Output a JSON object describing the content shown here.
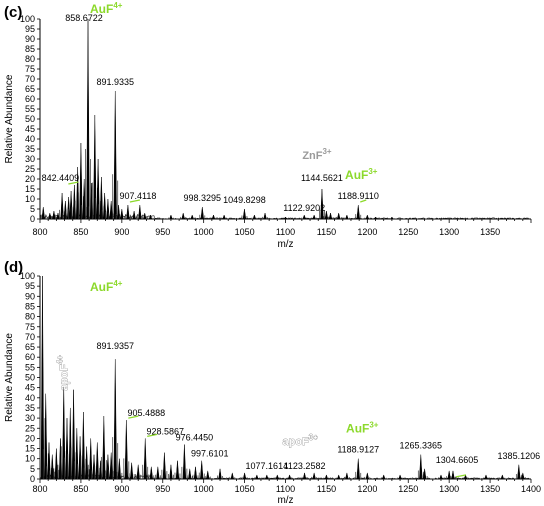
{
  "chart_data": [
    {
      "type": "line",
      "panel_label": "(c)",
      "xlabel": "m/z",
      "ylabel": "Relative Abundance",
      "xlim": [
        800,
        1400
      ],
      "ylim": [
        0,
        100
      ],
      "x_ticks": [
        800,
        850,
        900,
        950,
        1000,
        1050,
        1100,
        1150,
        1200,
        1250,
        1300,
        1350
      ],
      "y_ticks": [
        0,
        5,
        10,
        15,
        20,
        25,
        30,
        35,
        40,
        45,
        50,
        55,
        60,
        65,
        70,
        75,
        80,
        85,
        90,
        95,
        100
      ],
      "peaks": [
        {
          "x": 804,
          "y": 6
        },
        {
          "x": 812,
          "y": 3
        },
        {
          "x": 817,
          "y": 4
        },
        {
          "x": 822,
          "y": 3
        },
        {
          "x": 827,
          "y": 13
        },
        {
          "x": 831,
          "y": 9
        },
        {
          "x": 835,
          "y": 11
        },
        {
          "x": 838,
          "y": 14
        },
        {
          "x": 842,
          "y": 17
        },
        {
          "x": 846,
          "y": 26
        },
        {
          "x": 850,
          "y": 38
        },
        {
          "x": 854,
          "y": 20
        },
        {
          "x": 858.6722,
          "y": 100
        },
        {
          "x": 863,
          "y": 18
        },
        {
          "x": 867,
          "y": 52
        },
        {
          "x": 871,
          "y": 30
        },
        {
          "x": 875,
          "y": 21
        },
        {
          "x": 879,
          "y": 13
        },
        {
          "x": 883,
          "y": 10
        },
        {
          "x": 887,
          "y": 9
        },
        {
          "x": 891.9335,
          "y": 64
        },
        {
          "x": 896,
          "y": 7
        },
        {
          "x": 900,
          "y": 5
        },
        {
          "x": 907.4118,
          "y": 7
        },
        {
          "x": 915,
          "y": 4
        },
        {
          "x": 922,
          "y": 7
        },
        {
          "x": 928,
          "y": 3
        },
        {
          "x": 935,
          "y": 2
        },
        {
          "x": 960,
          "y": 2
        },
        {
          "x": 975,
          "y": 3
        },
        {
          "x": 986,
          "y": 2
        },
        {
          "x": 998.3295,
          "y": 6
        },
        {
          "x": 1012,
          "y": 2
        },
        {
          "x": 1025,
          "y": 2
        },
        {
          "x": 1049.8298,
          "y": 5
        },
        {
          "x": 1062,
          "y": 2
        },
        {
          "x": 1075,
          "y": 3
        },
        {
          "x": 1100,
          "y": 1
        },
        {
          "x": 1122.9202,
          "y": 2
        },
        {
          "x": 1135,
          "y": 2
        },
        {
          "x": 1144.5621,
          "y": 15
        },
        {
          "x": 1150,
          "y": 4
        },
        {
          "x": 1155,
          "y": 3
        },
        {
          "x": 1165,
          "y": 3
        },
        {
          "x": 1175,
          "y": 2
        },
        {
          "x": 1188.911,
          "y": 7
        },
        {
          "x": 1200,
          "y": 2
        },
        {
          "x": 1210,
          "y": 1
        },
        {
          "x": 1230,
          "y": 1
        }
      ],
      "annotations": [
        {
          "text": "858.6722",
          "x": 858.6722,
          "y": 100
        },
        {
          "text": "891.9335",
          "x": 891.9335,
          "y": 64
        },
        {
          "text": "842.4409",
          "x": 842,
          "y": 17
        },
        {
          "text": "907.4118",
          "x": 907.4118,
          "y": 7
        },
        {
          "text": "998.3295",
          "x": 998.3295,
          "y": 6
        },
        {
          "text": "1049.8298",
          "x": 1049.8298,
          "y": 5
        },
        {
          "text": "1122.9202",
          "x": 1122.9202,
          "y": 2
        },
        {
          "text": "1144.5621",
          "x": 1144.5621,
          "y": 15
        },
        {
          "text": "1188.9110",
          "x": 1188.911,
          "y": 7
        }
      ],
      "ion_labels": [
        {
          "base": "AuF",
          "sup": "4+",
          "color": "#8cd92b",
          "near_x": 891.9335
        },
        {
          "base": "ZnF",
          "sup": "3+",
          "color": "#9a9a9a",
          "near_x": 1144.5621
        },
        {
          "base": "AuF",
          "sup": "3+",
          "color": "#8cd92b",
          "near_x": 1188.911
        }
      ]
    },
    {
      "type": "line",
      "panel_label": "(d)",
      "xlabel": "m/z",
      "ylabel": "Relative Abundance",
      "xlim": [
        800,
        1400
      ],
      "ylim": [
        0,
        100
      ],
      "x_ticks": [
        800,
        850,
        900,
        950,
        1000,
        1050,
        1100,
        1150,
        1200,
        1250,
        1300,
        1350,
        1400
      ],
      "y_ticks": [
        0,
        5,
        10,
        15,
        20,
        25,
        30,
        35,
        40,
        45,
        50,
        55,
        60,
        65,
        70,
        75,
        80,
        85,
        90,
        95,
        100
      ],
      "peaks": [
        {
          "x": 803,
          "y": 100
        },
        {
          "x": 807,
          "y": 42
        },
        {
          "x": 811,
          "y": 18
        },
        {
          "x": 815,
          "y": 12
        },
        {
          "x": 820,
          "y": 15
        },
        {
          "x": 825,
          "y": 20
        },
        {
          "x": 829,
          "y": 46
        },
        {
          "x": 833,
          "y": 30
        },
        {
          "x": 837,
          "y": 35
        },
        {
          "x": 841,
          "y": 44
        },
        {
          "x": 845,
          "y": 25
        },
        {
          "x": 849,
          "y": 21
        },
        {
          "x": 853,
          "y": 33
        },
        {
          "x": 857,
          "y": 16
        },
        {
          "x": 862,
          "y": 20
        },
        {
          "x": 866,
          "y": 12
        },
        {
          "x": 870,
          "y": 18
        },
        {
          "x": 874,
          "y": 9
        },
        {
          "x": 878,
          "y": 31
        },
        {
          "x": 883,
          "y": 12
        },
        {
          "x": 887,
          "y": 13
        },
        {
          "x": 891.9357,
          "y": 59
        },
        {
          "x": 897,
          "y": 10
        },
        {
          "x": 905.4888,
          "y": 29
        },
        {
          "x": 912,
          "y": 8
        },
        {
          "x": 920,
          "y": 7
        },
        {
          "x": 928.5867,
          "y": 20
        },
        {
          "x": 936,
          "y": 6
        },
        {
          "x": 944,
          "y": 6
        },
        {
          "x": 952,
          "y": 13
        },
        {
          "x": 960,
          "y": 7
        },
        {
          "x": 968,
          "y": 9
        },
        {
          "x": 976.445,
          "y": 17
        },
        {
          "x": 983,
          "y": 5
        },
        {
          "x": 990,
          "y": 6
        },
        {
          "x": 997.6101,
          "y": 9
        },
        {
          "x": 1005,
          "y": 4
        },
        {
          "x": 1020,
          "y": 5
        },
        {
          "x": 1035,
          "y": 3
        },
        {
          "x": 1050,
          "y": 3
        },
        {
          "x": 1065,
          "y": 2
        },
        {
          "x": 1077.1614,
          "y": 2
        },
        {
          "x": 1090,
          "y": 2
        },
        {
          "x": 1105,
          "y": 2
        },
        {
          "x": 1123.2582,
          "y": 3
        },
        {
          "x": 1135,
          "y": 3
        },
        {
          "x": 1150,
          "y": 2
        },
        {
          "x": 1165,
          "y": 2
        },
        {
          "x": 1175,
          "y": 3
        },
        {
          "x": 1188.9127,
          "y": 10
        },
        {
          "x": 1200,
          "y": 3
        },
        {
          "x": 1220,
          "y": 2
        },
        {
          "x": 1240,
          "y": 2
        },
        {
          "x": 1265.3365,
          "y": 12
        },
        {
          "x": 1270,
          "y": 5
        },
        {
          "x": 1290,
          "y": 2
        },
        {
          "x": 1300,
          "y": 4
        },
        {
          "x": 1304.6605,
          "y": 4
        },
        {
          "x": 1320,
          "y": 2
        },
        {
          "x": 1345,
          "y": 2
        },
        {
          "x": 1365,
          "y": 2
        },
        {
          "x": 1385.1206,
          "y": 7
        },
        {
          "x": 1390,
          "y": 3
        }
      ],
      "annotations": [
        {
          "text": "891.9357",
          "x": 891.9357,
          "y": 59
        },
        {
          "text": "905.4888",
          "x": 905.4888,
          "y": 29
        },
        {
          "text": "928.5867",
          "x": 928.5867,
          "y": 20
        },
        {
          "text": "976.4450",
          "x": 976.445,
          "y": 17
        },
        {
          "text": "997.6101",
          "x": 997.6101,
          "y": 9
        },
        {
          "text": "1077.1614",
          "x": 1077.1614,
          "y": 2
        },
        {
          "text": "1123.2582",
          "x": 1123.2582,
          "y": 3
        },
        {
          "text": "1188.9127",
          "x": 1188.9127,
          "y": 10
        },
        {
          "text": "1265.3365",
          "x": 1265.3365,
          "y": 12
        },
        {
          "text": "1304.6605",
          "x": 1304.6605,
          "y": 4
        },
        {
          "text": "1385.1206",
          "x": 1385.1206,
          "y": 7
        }
      ],
      "ion_labels": [
        {
          "base": "AuF",
          "sup": "4+",
          "color": "#8cd92b",
          "near_x": 891.9357
        },
        {
          "base": "AuF",
          "sup": "3+",
          "color": "#8cd92b",
          "near_x": 1188.9127
        },
        {
          "base": "apoF",
          "sup": "4+",
          "color": "#ffffff",
          "near_x": 836
        },
        {
          "base": "apoF",
          "sup": "3+",
          "color": "#ffffff",
          "near_x": 1118
        }
      ]
    }
  ]
}
